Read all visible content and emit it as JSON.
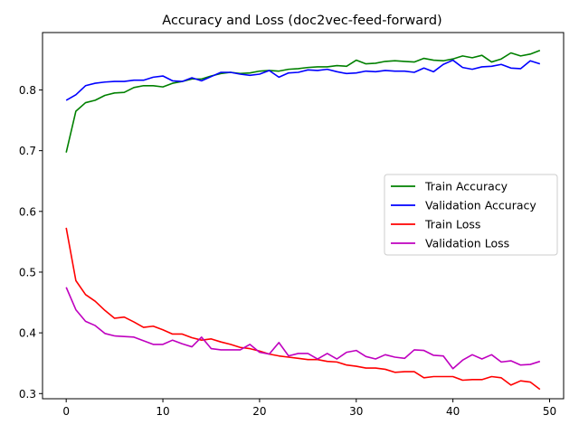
{
  "chart_data": {
    "type": "line",
    "title": "Accuracy and Loss (doc2vec-feed-forward)",
    "xlabel": "",
    "ylabel": "",
    "xlim": [
      -2.45,
      51.45
    ],
    "ylim": [
      0.2915,
      0.8945
    ],
    "xticks": [
      0,
      10,
      20,
      30,
      40,
      50
    ],
    "yticks": [
      0.3,
      0.4,
      0.5,
      0.6,
      0.7,
      0.8
    ],
    "grid": false,
    "legend_position": "center-right",
    "x": [
      0,
      1,
      2,
      3,
      4,
      5,
      6,
      7,
      8,
      9,
      10,
      11,
      12,
      13,
      14,
      15,
      16,
      17,
      18,
      19,
      20,
      21,
      22,
      23,
      24,
      25,
      26,
      27,
      28,
      29,
      30,
      31,
      32,
      33,
      34,
      35,
      36,
      37,
      38,
      39,
      40,
      41,
      42,
      43,
      44,
      45,
      46,
      47,
      48,
      49
    ],
    "series": [
      {
        "name": "Train Accuracy",
        "color": "#008000",
        "values": [
          0.697,
          0.765,
          0.779,
          0.783,
          0.791,
          0.795,
          0.796,
          0.804,
          0.807,
          0.807,
          0.805,
          0.811,
          0.814,
          0.818,
          0.818,
          0.823,
          0.827,
          0.829,
          0.827,
          0.828,
          0.831,
          0.832,
          0.831,
          0.834,
          0.835,
          0.837,
          0.838,
          0.838,
          0.84,
          0.839,
          0.849,
          0.843,
          0.844,
          0.847,
          0.848,
          0.847,
          0.846,
          0.852,
          0.849,
          0.848,
          0.851,
          0.856,
          0.853,
          0.857,
          0.846,
          0.851,
          0.861,
          0.856,
          0.859,
          0.865
        ]
      },
      {
        "name": "Validation Accuracy",
        "color": "#0000ff",
        "values": [
          0.783,
          0.792,
          0.807,
          0.811,
          0.813,
          0.814,
          0.814,
          0.816,
          0.816,
          0.821,
          0.823,
          0.815,
          0.814,
          0.82,
          0.815,
          0.822,
          0.829,
          0.829,
          0.826,
          0.824,
          0.826,
          0.832,
          0.821,
          0.828,
          0.829,
          0.833,
          0.832,
          0.834,
          0.83,
          0.827,
          0.828,
          0.831,
          0.83,
          0.832,
          0.831,
          0.831,
          0.829,
          0.836,
          0.83,
          0.842,
          0.849,
          0.837,
          0.834,
          0.838,
          0.839,
          0.842,
          0.836,
          0.835,
          0.848,
          0.843
        ]
      },
      {
        "name": "Train Loss",
        "color": "#ff0000",
        "values": [
          0.573,
          0.486,
          0.463,
          0.452,
          0.437,
          0.424,
          0.426,
          0.418,
          0.409,
          0.411,
          0.405,
          0.398,
          0.398,
          0.392,
          0.388,
          0.39,
          0.385,
          0.381,
          0.376,
          0.374,
          0.37,
          0.365,
          0.362,
          0.36,
          0.358,
          0.356,
          0.356,
          0.353,
          0.352,
          0.347,
          0.345,
          0.342,
          0.342,
          0.34,
          0.335,
          0.336,
          0.336,
          0.326,
          0.328,
          0.328,
          0.328,
          0.322,
          0.323,
          0.323,
          0.328,
          0.326,
          0.314,
          0.321,
          0.319,
          0.307
        ]
      },
      {
        "name": "Validation Loss",
        "color": "#bf00bf",
        "values": [
          0.475,
          0.438,
          0.419,
          0.412,
          0.399,
          0.395,
          0.394,
          0.393,
          0.387,
          0.381,
          0.381,
          0.388,
          0.382,
          0.377,
          0.393,
          0.374,
          0.372,
          0.372,
          0.372,
          0.381,
          0.368,
          0.365,
          0.384,
          0.362,
          0.366,
          0.366,
          0.357,
          0.366,
          0.357,
          0.368,
          0.371,
          0.361,
          0.357,
          0.364,
          0.36,
          0.358,
          0.372,
          0.371,
          0.363,
          0.362,
          0.341,
          0.355,
          0.364,
          0.357,
          0.364,
          0.352,
          0.354,
          0.347,
          0.348,
          0.353
        ]
      }
    ]
  }
}
